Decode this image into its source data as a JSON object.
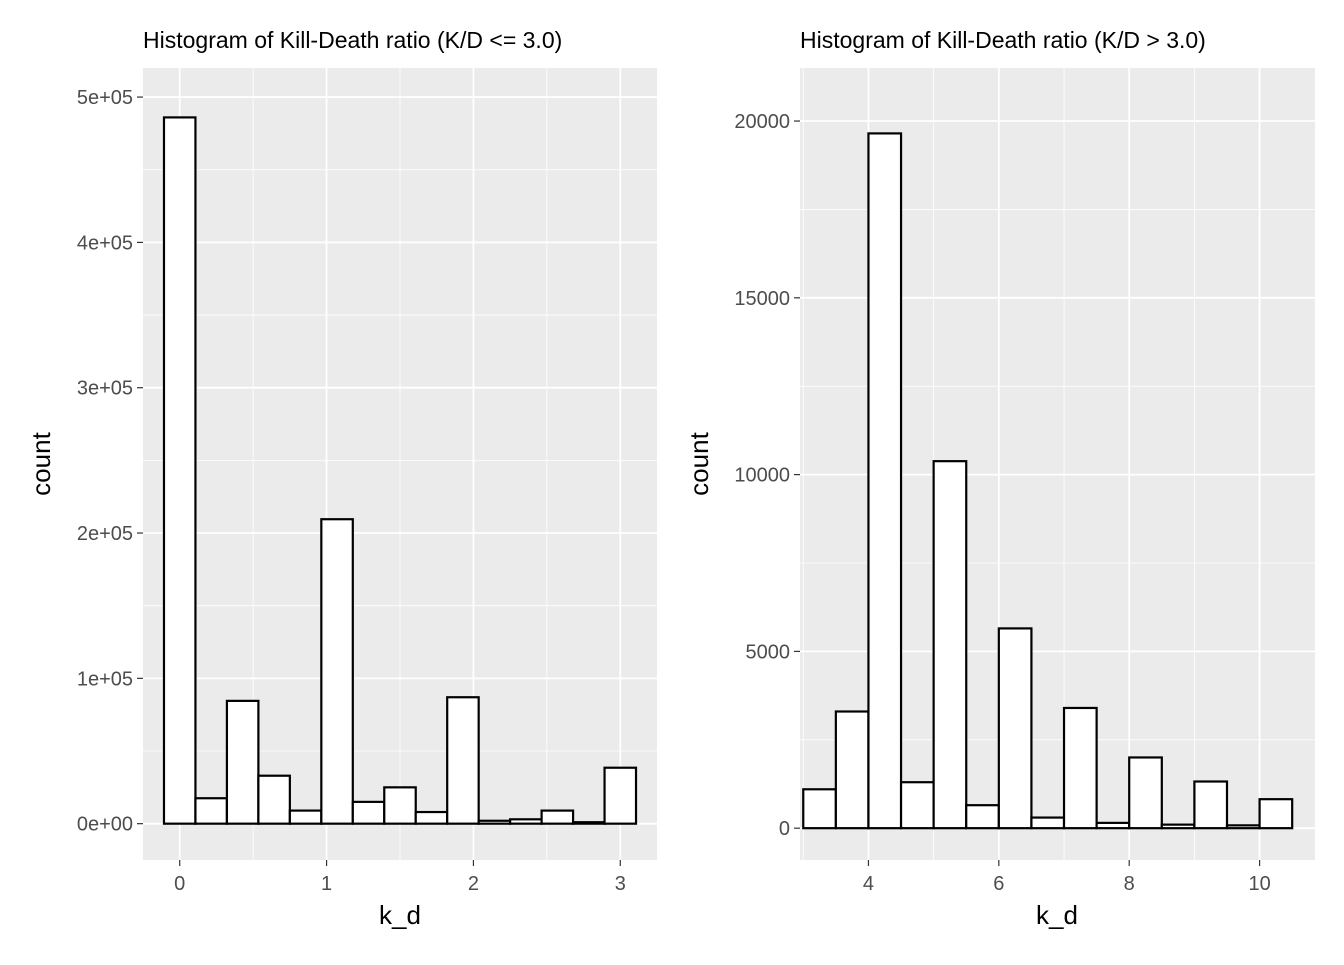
{
  "chart_data": [
    {
      "type": "bar",
      "title": "Histogram of Kill-Death ratio (K/D <= 3.0)",
      "xlabel": "k_d",
      "ylabel": "count",
      "xlim": [
        -0.25,
        3.25
      ],
      "ylim": [
        -25000,
        520000
      ],
      "x_ticks": [
        0,
        1,
        2,
        3
      ],
      "x_tick_labels": [
        "0",
        "1",
        "2",
        "3"
      ],
      "y_ticks": [
        0,
        100000,
        200000,
        300000,
        400000,
        500000
      ],
      "y_tick_labels": [
        "0e+00",
        "1e+05",
        "2e+05",
        "3e+05",
        "4e+05",
        "5e+05"
      ],
      "bin_width": 0.2143,
      "bins": [
        {
          "x0": -0.1071,
          "x1": 0.1071,
          "count": 486000
        },
        {
          "x0": 0.1071,
          "x1": 0.3214,
          "count": 17500
        },
        {
          "x0": 0.3214,
          "x1": 0.5357,
          "count": 84500
        },
        {
          "x0": 0.5357,
          "x1": 0.75,
          "count": 33000
        },
        {
          "x0": 0.75,
          "x1": 0.9643,
          "count": 9000
        },
        {
          "x0": 0.9643,
          "x1": 1.1786,
          "count": 209500
        },
        {
          "x0": 1.1786,
          "x1": 1.3929,
          "count": 15000
        },
        {
          "x0": 1.3929,
          "x1": 1.6071,
          "count": 25000
        },
        {
          "x0": 1.6071,
          "x1": 1.8214,
          "count": 8000
        },
        {
          "x0": 1.8214,
          "x1": 2.0357,
          "count": 87000
        },
        {
          "x0": 2.0357,
          "x1": 2.25,
          "count": 2000
        },
        {
          "x0": 2.25,
          "x1": 2.4643,
          "count": 3000
        },
        {
          "x0": 2.4643,
          "x1": 2.6786,
          "count": 9000
        },
        {
          "x0": 2.6786,
          "x1": 2.8929,
          "count": 1000
        },
        {
          "x0": 2.8929,
          "x1": 3.1071,
          "count": 38500
        }
      ]
    },
    {
      "type": "bar",
      "title": "Histogram of Kill-Death ratio (K/D > 3.0)",
      "xlabel": "k_d",
      "ylabel": "count",
      "xlim": [
        2.95,
        10.85
      ],
      "ylim": [
        -900,
        21500
      ],
      "x_ticks": [
        4,
        6,
        8,
        10
      ],
      "x_tick_labels": [
        "4",
        "6",
        "8",
        "10"
      ],
      "y_ticks": [
        0,
        5000,
        10000,
        15000,
        20000
      ],
      "y_tick_labels": [
        "0",
        "5000",
        "10000",
        "15000",
        "20000"
      ],
      "bin_width": 0.5,
      "bins": [
        {
          "x0": 3.0,
          "x1": 3.5,
          "count": 1100
        },
        {
          "x0": 3.5,
          "x1": 4.0,
          "count": 3300
        },
        {
          "x0": 4.0,
          "x1": 4.5,
          "count": 19650
        },
        {
          "x0": 4.5,
          "x1": 5.0,
          "count": 1300
        },
        {
          "x0": 5.0,
          "x1": 5.5,
          "count": 10380
        },
        {
          "x0": 5.5,
          "x1": 6.0,
          "count": 650
        },
        {
          "x0": 6.0,
          "x1": 6.5,
          "count": 5650
        },
        {
          "x0": 6.5,
          "x1": 7.0,
          "count": 300
        },
        {
          "x0": 7.0,
          "x1": 7.5,
          "count": 3400
        },
        {
          "x0": 7.5,
          "x1": 8.0,
          "count": 150
        },
        {
          "x0": 8.0,
          "x1": 8.5,
          "count": 2000
        },
        {
          "x0": 8.5,
          "x1": 9.0,
          "count": 100
        },
        {
          "x0": 9.0,
          "x1": 9.5,
          "count": 1320
        },
        {
          "x0": 9.5,
          "x1": 10.0,
          "count": 80
        },
        {
          "x0": 10.0,
          "x1": 10.5,
          "count": 820
        }
      ]
    }
  ]
}
